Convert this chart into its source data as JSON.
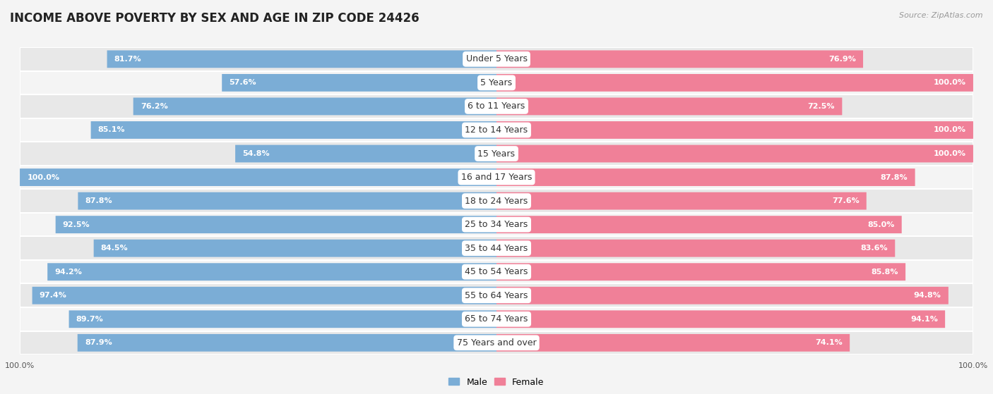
{
  "title": "INCOME ABOVE POVERTY BY SEX AND AGE IN ZIP CODE 24426",
  "source": "Source: ZipAtlas.com",
  "categories": [
    "Under 5 Years",
    "5 Years",
    "6 to 11 Years",
    "12 to 14 Years",
    "15 Years",
    "16 and 17 Years",
    "18 to 24 Years",
    "25 to 34 Years",
    "35 to 44 Years",
    "45 to 54 Years",
    "55 to 64 Years",
    "65 to 74 Years",
    "75 Years and over"
  ],
  "male_values": [
    81.7,
    57.6,
    76.2,
    85.1,
    54.8,
    100.0,
    87.8,
    92.5,
    84.5,
    94.2,
    97.4,
    89.7,
    87.9
  ],
  "female_values": [
    76.9,
    100.0,
    72.5,
    100.0,
    100.0,
    87.8,
    77.6,
    85.0,
    83.6,
    85.8,
    94.8,
    94.1,
    74.1
  ],
  "male_color_dark": "#6699cc",
  "male_color_light": "#aac8e8",
  "female_color_dark": "#e8708a",
  "female_color_light": "#f0aabb",
  "male_color": "#7badd6",
  "female_color": "#f08098",
  "row_bg_even": "#e8e8e8",
  "row_bg_odd": "#f4f4f4",
  "fig_bg": "#f4f4f4",
  "title_fontsize": 12,
  "source_fontsize": 8,
  "label_fontsize": 8,
  "category_fontsize": 9,
  "legend_fontsize": 9,
  "axis_label_fontsize": 8
}
